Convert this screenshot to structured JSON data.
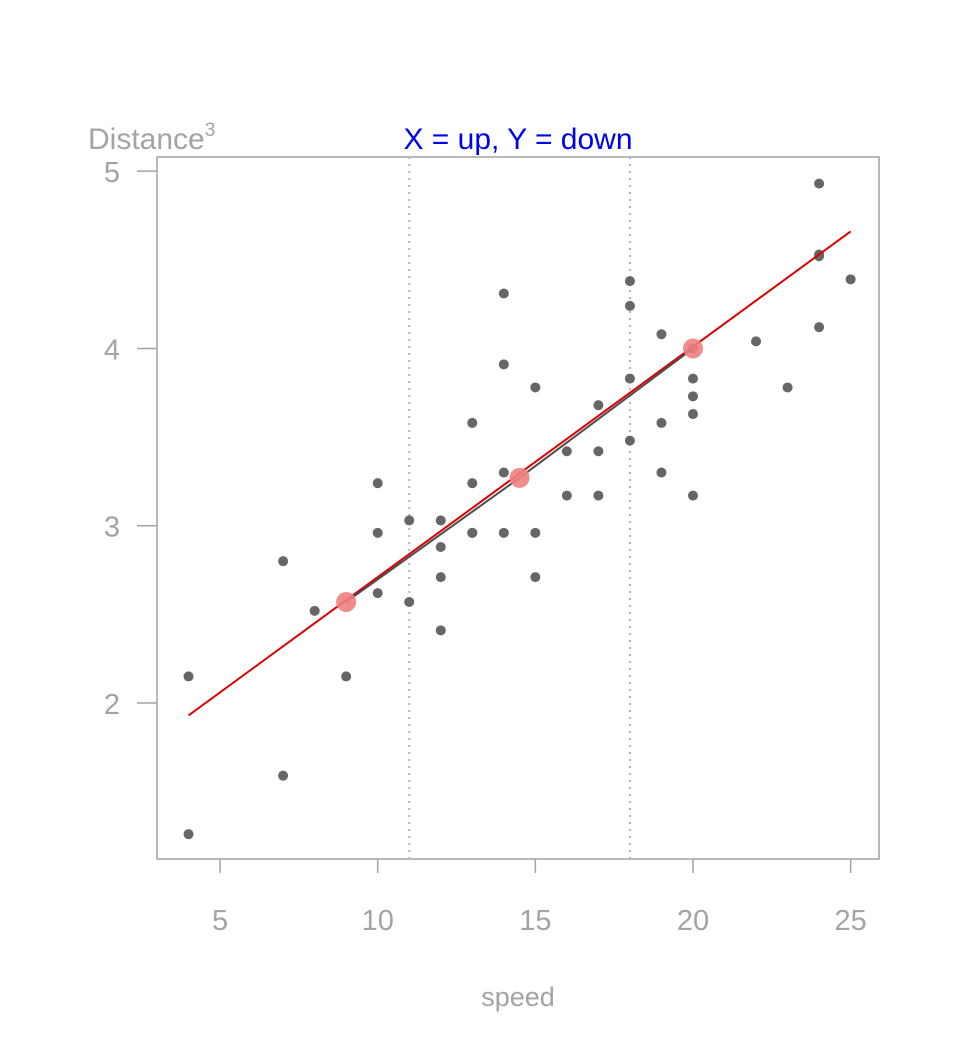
{
  "chart_data": {
    "type": "scatter",
    "title": "X = up, Y = down",
    "title_color": "#0000ee",
    "xlabel": "speed",
    "ylabel": "Distance",
    "ylabel_superscript": "3",
    "xlim": [
      3.0,
      25.9
    ],
    "ylim": [
      1.12,
      5.08
    ],
    "x_ticks": [
      5,
      10,
      15,
      20,
      25
    ],
    "y_ticks": [
      2,
      3,
      4,
      5
    ],
    "x_tick_labels": [
      "5",
      "10",
      "15",
      "20",
      "25"
    ],
    "y_tick_labels": [
      "2",
      "3",
      "4",
      "5"
    ],
    "grid": false,
    "vlines": [
      11,
      18
    ],
    "points": {
      "color": "#666666",
      "x": [
        4,
        4,
        7,
        7,
        8,
        9,
        10,
        10,
        10,
        11,
        11,
        12,
        12,
        12,
        12,
        13,
        13,
        13,
        13,
        14,
        14,
        14,
        14,
        15,
        15,
        15,
        16,
        16,
        17,
        17,
        17,
        18,
        18,
        18,
        18,
        19,
        19,
        19,
        20,
        20,
        20,
        20,
        20,
        22,
        23,
        24,
        24,
        24,
        24,
        25
      ],
      "y": [
        1.26,
        2.15,
        1.59,
        2.8,
        2.52,
        2.15,
        2.62,
        2.96,
        3.24,
        2.57,
        3.03,
        2.41,
        2.71,
        2.88,
        3.03,
        2.96,
        2.96,
        3.24,
        3.58,
        2.96,
        3.3,
        3.91,
        4.31,
        2.71,
        2.96,
        3.78,
        3.17,
        3.42,
        3.17,
        3.42,
        3.68,
        3.48,
        3.83,
        4.24,
        4.38,
        3.3,
        3.58,
        4.08,
        3.17,
        3.63,
        3.73,
        3.83,
        4.0,
        4.04,
        3.78,
        4.12,
        4.52,
        4.53,
        4.93,
        4.39
      ]
    },
    "fit_line": {
      "color": "#dd0000",
      "x": [
        4,
        25
      ],
      "y": [
        1.93,
        4.66
      ]
    },
    "smooth_line": {
      "color": "#4d4d4d",
      "x": [
        9,
        14.5,
        20
      ],
      "y": [
        2.57,
        3.27,
        4.0
      ]
    },
    "highlight_points": {
      "color": "#f08080",
      "x": [
        9,
        14.5,
        20
      ],
      "y": [
        2.57,
        3.27,
        4.0
      ]
    }
  }
}
